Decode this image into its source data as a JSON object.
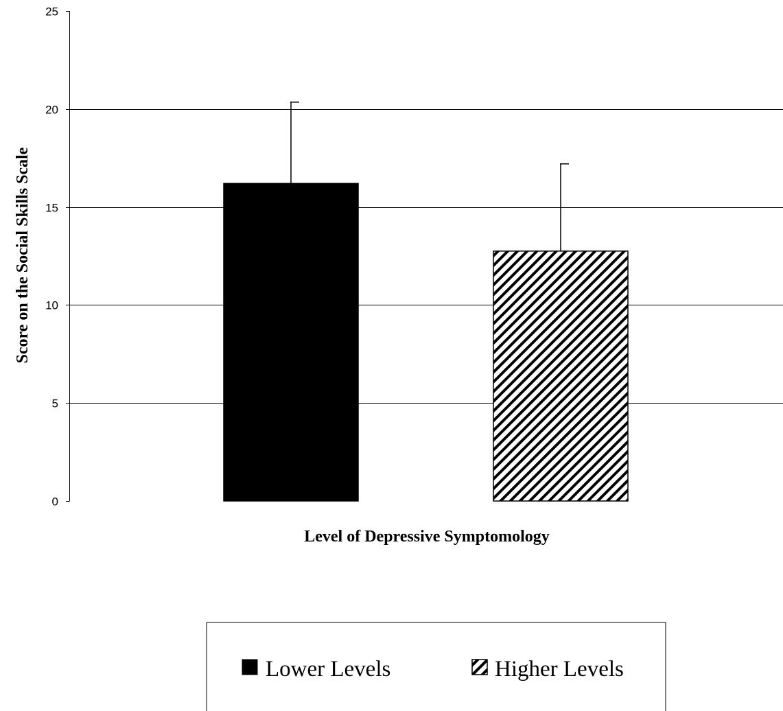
{
  "chart_data": {
    "type": "bar",
    "title": "",
    "xlabel": "Level of Depressive Symptomology",
    "ylabel": "Score on the Social Skills Scale",
    "ylim": [
      0,
      25
    ],
    "yticks": [
      "0",
      "5",
      "10",
      "15",
      "20",
      "25"
    ],
    "grid": true,
    "legend_position": "bottom",
    "series": [
      {
        "name": "Lower Levels",
        "value": 16.2,
        "error_upper": 20.35,
        "fill": "#000000",
        "pattern": "solid"
      },
      {
        "name": "Higher Levels",
        "value": 12.75,
        "error_upper": 17.2,
        "fill": "#ffffff",
        "pattern": "diagonal-stripes"
      }
    ]
  }
}
